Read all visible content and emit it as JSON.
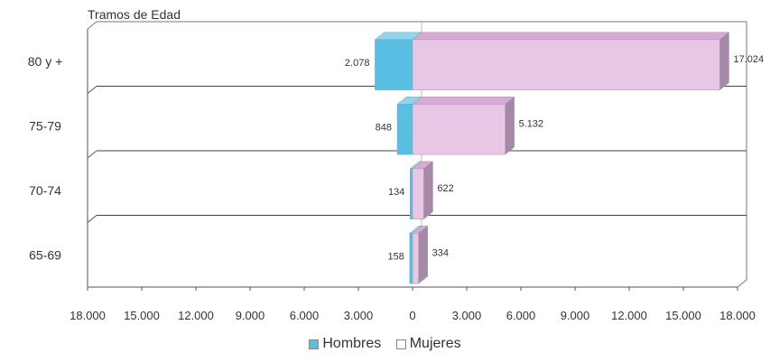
{
  "chart_data": {
    "type": "bar",
    "orientation": "horizontal",
    "title": "Tramos de Edad",
    "categories": [
      "80 y +",
      "75-79",
      "70-74",
      "65-69"
    ],
    "series": [
      {
        "name": "Hombres",
        "values": [
          2078,
          848,
          134,
          158
        ],
        "labels": [
          "2.078",
          "848",
          "134",
          "158"
        ],
        "color": "#5bbfe3"
      },
      {
        "name": "Mujeres",
        "values": [
          17024,
          5132,
          622,
          334
        ],
        "labels": [
          "17.024",
          "5.132",
          "622",
          "334"
        ],
        "color": "#e8c6e6"
      }
    ],
    "xlim": [
      -18000,
      18000
    ],
    "x_tick_labels": [
      "18.000",
      "15.000",
      "12.000",
      "9.000",
      "6.000",
      "3.000",
      "0",
      "3.000",
      "6.000",
      "9.000",
      "12.000",
      "15.000",
      "18.000"
    ],
    "grid": true,
    "legend_position": "bottom"
  },
  "legend": {
    "hombres": "Hombres",
    "mujeres": "Mujeres"
  }
}
